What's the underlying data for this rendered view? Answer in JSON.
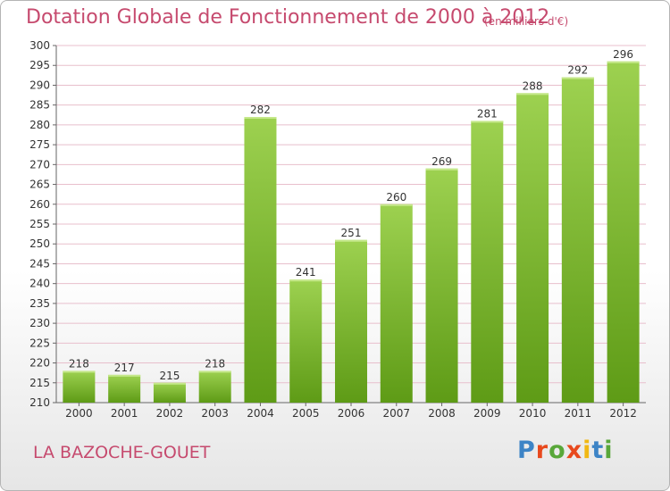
{
  "header": {
    "title": "Dotation Globale de Fonctionnement de 2000 à 2012",
    "unit": "(en milliers d'€)"
  },
  "footer": {
    "town": "LA BAZOCHE-GOUET",
    "logo": "Proxiti",
    "logo_colors": [
      "#3d84c6",
      "#e8491d",
      "#58a739",
      "#e8491d",
      "#f1b814",
      "#3d84c6",
      "#58a739"
    ]
  },
  "chart_data": {
    "type": "bar",
    "categories": [
      "2000",
      "2001",
      "2002",
      "2003",
      "2004",
      "2005",
      "2006",
      "2007",
      "2008",
      "2009",
      "2010",
      "2011",
      "2012"
    ],
    "values": [
      218,
      217,
      215,
      218,
      282,
      241,
      251,
      260,
      269,
      281,
      288,
      292,
      296
    ],
    "ylim": [
      210,
      300
    ],
    "yticks": [
      210,
      215,
      220,
      225,
      230,
      235,
      240,
      245,
      250,
      255,
      260,
      265,
      270,
      275,
      280,
      285,
      290,
      295,
      300
    ],
    "grid": true,
    "bar_color_top": "#9dd150",
    "bar_color_bottom": "#5e9b16",
    "grid_color": "#e8bfcc"
  }
}
